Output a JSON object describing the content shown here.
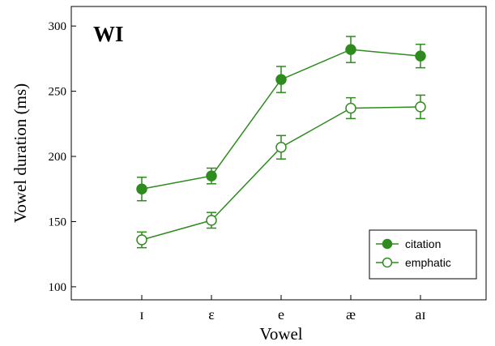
{
  "chart_data": {
    "type": "line",
    "title": "WI",
    "xlabel": "Vowel",
    "ylabel": "Vowel duration (ms)",
    "categories": [
      "ɪ",
      "ɛ",
      "e",
      "æ",
      "aɪ"
    ],
    "ylim": [
      90,
      315
    ],
    "yticks": [
      100,
      150,
      200,
      250,
      300
    ],
    "grid": false,
    "legend_position": "bottom-right",
    "color": "#2e8b1e",
    "series": [
      {
        "name": "citation",
        "marker": "filled-circle",
        "values": [
          175,
          185,
          259,
          282,
          277
        ],
        "error": [
          9,
          6,
          10,
          10,
          9
        ]
      },
      {
        "name": "emphatic",
        "marker": "open-circle",
        "values": [
          136,
          151,
          207,
          237,
          238
        ],
        "error": [
          6,
          6,
          9,
          8,
          9
        ]
      }
    ]
  }
}
